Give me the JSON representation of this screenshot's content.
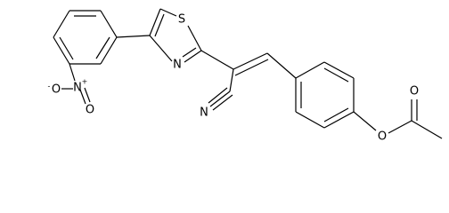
{
  "atoms": {
    "thiazole_s": "S",
    "thiazole_n": "N",
    "nitrile_n": "N",
    "nitro_n": "N",
    "nitro_n_charge": "+",
    "nitro_o_double": "O",
    "nitro_o_single": "O",
    "nitro_o_charge": "-",
    "ester_o": "O",
    "carbonyl_o": "O"
  }
}
